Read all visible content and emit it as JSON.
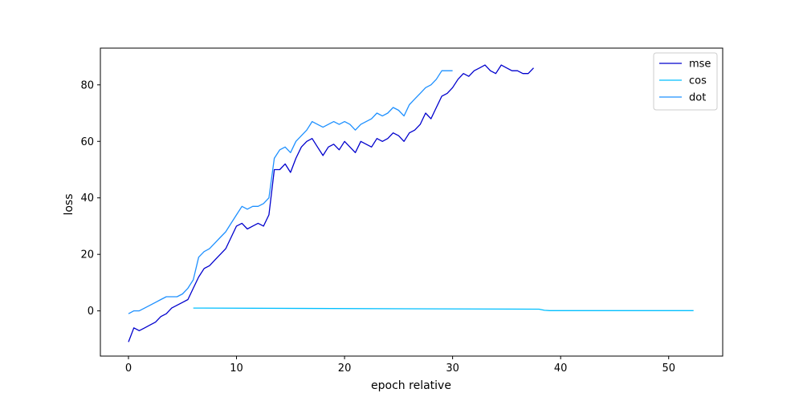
{
  "chart_data": {
    "type": "line",
    "xlabel": "epoch relative",
    "ylabel": "loss",
    "xlim": [
      -2.6,
      55
    ],
    "ylim": [
      -16,
      93
    ],
    "xticks": [
      0,
      10,
      20,
      30,
      40,
      50
    ],
    "yticks": [
      0,
      20,
      40,
      60,
      80
    ],
    "legend_position": "top-right",
    "grid": false,
    "series": [
      {
        "name": "mse",
        "color": "#0000cd",
        "x": [
          0,
          0.5,
          1,
          1.5,
          2,
          2.5,
          3,
          3.5,
          4,
          4.5,
          5,
          5.5,
          6,
          6.5,
          7,
          7.5,
          8,
          8.5,
          9,
          9.5,
          10,
          10.5,
          11,
          11.5,
          12,
          12.5,
          13,
          13.5,
          14,
          14.5,
          15,
          15.5,
          16,
          16.5,
          17,
          17.5,
          18,
          18.5,
          19,
          19.5,
          20,
          20.5,
          21,
          21.5,
          22,
          22.5,
          23,
          23.5,
          24,
          24.5,
          25,
          25.5,
          26,
          26.5,
          27,
          27.5,
          28,
          28.5,
          29,
          29.5,
          30,
          30.5,
          31,
          31.5,
          32,
          32.5,
          33,
          33.5,
          34,
          34.5,
          35,
          35.5,
          36,
          36.5,
          37,
          37.5
        ],
        "values": [
          -11,
          -6,
          -7,
          -6,
          -5,
          -4,
          -2,
          -1,
          1,
          2,
          3,
          4,
          8,
          12,
          15,
          16,
          18,
          20,
          22,
          26,
          30,
          31,
          29,
          30,
          31,
          30,
          34,
          50,
          50,
          52,
          49,
          54,
          58,
          60,
          61,
          58,
          55,
          58,
          59,
          57,
          60,
          58,
          56,
          60,
          59,
          58,
          61,
          60,
          61,
          63,
          62,
          60,
          63,
          64,
          66,
          70,
          68,
          72,
          76,
          77,
          79,
          82,
          84,
          83,
          85,
          86,
          87,
          85,
          84,
          87,
          86,
          85,
          85,
          84,
          84,
          86
        ]
      },
      {
        "name": "cos",
        "color": "#00bfff",
        "x": [
          6,
          38,
          38.5,
          39,
          40,
          42,
          44,
          46,
          48,
          50,
          52.3
        ],
        "values": [
          1,
          0.6,
          0.2,
          0.1,
          0.1,
          0.1,
          0.1,
          0.1,
          0.1,
          0.1,
          0.1
        ]
      },
      {
        "name": "dot",
        "color": "#1e90ff",
        "x": [
          0,
          0.5,
          1,
          1.5,
          2,
          2.5,
          3,
          3.5,
          4,
          4.5,
          5,
          5.5,
          6,
          6.5,
          7,
          7.5,
          8,
          8.5,
          9,
          9.5,
          10,
          10.5,
          11,
          11.5,
          12,
          12.5,
          13,
          13.5,
          14,
          14.5,
          15,
          15.5,
          16,
          16.5,
          17,
          17.5,
          18,
          18.5,
          19,
          19.5,
          20,
          20.5,
          21,
          21.5,
          22,
          22.5,
          23,
          23.5,
          24,
          24.5,
          25,
          25.5,
          26,
          26.5,
          27,
          27.5,
          28,
          28.5,
          29,
          29.5,
          30
        ],
        "values": [
          -1,
          0,
          0,
          1,
          2,
          3,
          4,
          5,
          5,
          5,
          6,
          8,
          11,
          19,
          21,
          22,
          24,
          26,
          28,
          31,
          34,
          37,
          36,
          37,
          37,
          38,
          40,
          54,
          57,
          58,
          56,
          60,
          62,
          64,
          67,
          66,
          65,
          66,
          67,
          66,
          67,
          66,
          64,
          66,
          67,
          68,
          70,
          69,
          70,
          72,
          71,
          69,
          73,
          75,
          77,
          79,
          80,
          82,
          85,
          85,
          85
        ]
      }
    ]
  }
}
